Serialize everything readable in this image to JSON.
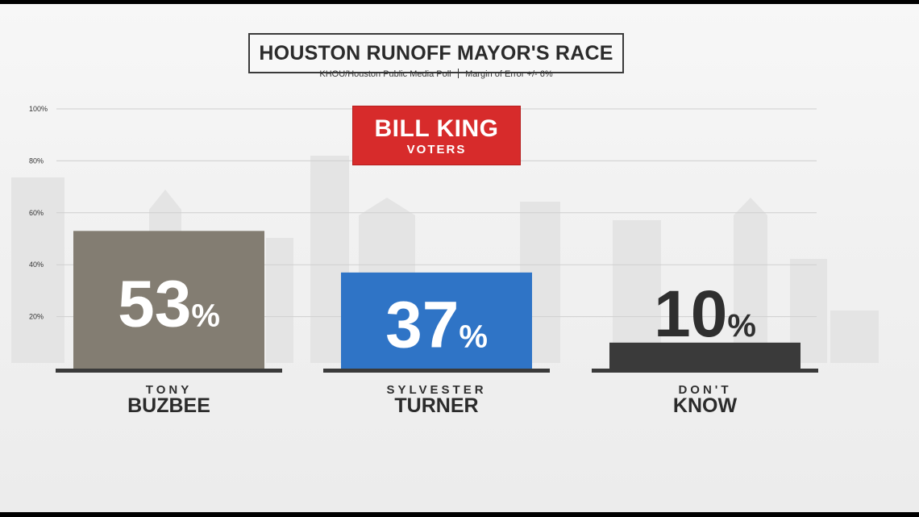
{
  "title": "HOUSTON RUNOFF MAYOR'S RACE",
  "subtitle": {
    "source": "KHOU/Houston Public Media Poll",
    "margin": "Margin of Error +/- 6%"
  },
  "badge": {
    "main": "BILL KING",
    "sub": "VOTERS"
  },
  "colors": {
    "buzbee": "#837d72",
    "turner": "#2f74c6",
    "dont_know": "#3a3a3a",
    "badge": "#d72b2b",
    "baseline": "#3a3a3a"
  },
  "chart_data": {
    "type": "bar",
    "title": "HOUSTON RUNOFF MAYOR'S RACE",
    "subtitle": "KHOU/Houston Public Media Poll | Margin of Error +/- 6%",
    "annotation": "BILL KING VOTERS",
    "categories": [
      {
        "first": "TONY",
        "last": "BUZBEE"
      },
      {
        "first": "SYLVESTER",
        "last": "TURNER"
      },
      {
        "first": "DON'T",
        "last": "KNOW"
      }
    ],
    "values": [
      53,
      37,
      10
    ],
    "value_labels": [
      "53",
      "37",
      "10"
    ],
    "value_suffix": "%",
    "ylim": [
      0,
      100
    ],
    "yticks": [
      "20%",
      "40%",
      "60%",
      "80%",
      "100%"
    ],
    "ytick_values": [
      20,
      40,
      60,
      80,
      100
    ],
    "grid": true,
    "legend": "none"
  }
}
